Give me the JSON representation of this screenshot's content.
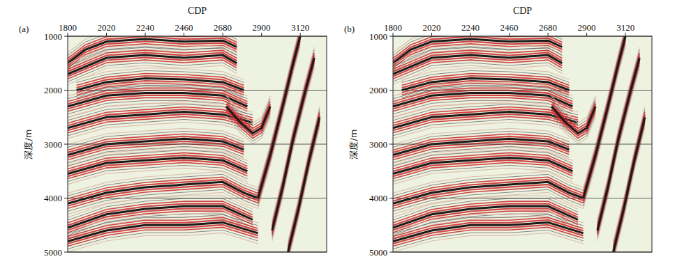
{
  "chart_data": [
    {
      "type": "seismic_section",
      "panel_label": "(a)",
      "x_label": "CDP",
      "y_label": "深度/m",
      "xlim": [
        1800,
        3270
      ],
      "ylim": [
        1000,
        5000
      ],
      "xticks": [
        1800,
        2020,
        2240,
        2460,
        2680,
        2900,
        3120
      ],
      "yticks": [
        1000,
        2000,
        3000,
        4000,
        5000
      ],
      "grid": true,
      "color": "#c8282a",
      "horizons": [
        {
          "x": [
            1800,
            1900,
            2020,
            2240,
            2460,
            2680,
            2760
          ],
          "depth": [
            1500,
            1250,
            1100,
            1050,
            1100,
            1080,
            1200
          ]
        },
        {
          "x": [
            1800,
            2020,
            2240,
            2460,
            2680,
            2760
          ],
          "depth": [
            1700,
            1400,
            1350,
            1400,
            1350,
            1500
          ]
        },
        {
          "x": [
            1850,
            2020,
            2240,
            2460,
            2680,
            2800
          ],
          "depth": [
            2000,
            1850,
            1780,
            1800,
            1850,
            2000
          ]
        },
        {
          "x": [
            1800,
            2020,
            2240,
            2460,
            2680,
            2820
          ],
          "depth": [
            2300,
            2100,
            2050,
            2050,
            2100,
            2300
          ]
        },
        {
          "x": [
            1800,
            2020,
            2240,
            2460,
            2680,
            2850
          ],
          "depth": [
            2700,
            2500,
            2450,
            2400,
            2450,
            2600
          ]
        },
        {
          "x": [
            2700,
            2780,
            2850,
            2900,
            2950
          ],
          "depth": [
            2300,
            2600,
            2800,
            2700,
            2300
          ]
        },
        {
          "x": [
            1800,
            2020,
            2240,
            2460,
            2680,
            2800
          ],
          "depth": [
            3200,
            3000,
            2950,
            2900,
            2950,
            3100
          ]
        },
        {
          "x": [
            1800,
            2020,
            2240,
            2460,
            2680,
            2820
          ],
          "depth": [
            3550,
            3350,
            3300,
            3250,
            3300,
            3500
          ]
        },
        {
          "x": [
            1800,
            2020,
            2240,
            2460,
            2680,
            2800,
            2880
          ],
          "depth": [
            4100,
            3900,
            3800,
            3750,
            3700,
            3900,
            4000
          ]
        },
        {
          "x": [
            1800,
            2020,
            2240,
            2460,
            2680,
            2850
          ],
          "depth": [
            4550,
            4300,
            4200,
            4150,
            4150,
            4400
          ]
        },
        {
          "x": [
            1800,
            2020,
            2240,
            2460,
            2680,
            2880
          ],
          "depth": [
            4800,
            4600,
            4500,
            4500,
            4450,
            4650
          ]
        },
        {
          "x": [
            2880,
            2950,
            3020,
            3080,
            3120
          ],
          "depth": [
            4000,
            3200,
            2300,
            1500,
            1000
          ]
        },
        {
          "x": [
            2960,
            3020,
            3080,
            3150,
            3200
          ],
          "depth": [
            4600,
            3800,
            2900,
            2000,
            1400
          ]
        },
        {
          "x": [
            3050,
            3110,
            3170,
            3230
          ],
          "depth": [
            5000,
            4200,
            3300,
            2500
          ]
        }
      ]
    },
    {
      "type": "seismic_section",
      "panel_label": "(b)",
      "x_label": "CDP",
      "y_label": "深度/m",
      "xlim": [
        1800,
        3270
      ],
      "ylim": [
        1000,
        5000
      ],
      "xticks": [
        1800,
        2020,
        2240,
        2460,
        2680,
        2900,
        3120
      ],
      "yticks": [
        1000,
        2000,
        3000,
        4000,
        5000
      ],
      "grid": true,
      "color": "#c8282a",
      "horizons": [
        {
          "x": [
            1800,
            1900,
            2020,
            2240,
            2460,
            2680,
            2760
          ],
          "depth": [
            1500,
            1250,
            1100,
            1050,
            1100,
            1080,
            1200
          ]
        },
        {
          "x": [
            1800,
            2020,
            2240,
            2460,
            2680,
            2760
          ],
          "depth": [
            1700,
            1400,
            1350,
            1400,
            1350,
            1500
          ]
        },
        {
          "x": [
            1850,
            2020,
            2240,
            2460,
            2680,
            2800
          ],
          "depth": [
            2000,
            1850,
            1780,
            1800,
            1850,
            2000
          ]
        },
        {
          "x": [
            1800,
            2020,
            2240,
            2460,
            2680,
            2820
          ],
          "depth": [
            2300,
            2100,
            2050,
            2050,
            2100,
            2300
          ]
        },
        {
          "x": [
            1800,
            2020,
            2240,
            2460,
            2680,
            2850
          ],
          "depth": [
            2700,
            2500,
            2450,
            2400,
            2450,
            2600
          ]
        },
        {
          "x": [
            2700,
            2780,
            2850,
            2900,
            2950
          ],
          "depth": [
            2300,
            2600,
            2800,
            2700,
            2300
          ]
        },
        {
          "x": [
            1800,
            2020,
            2240,
            2460,
            2680,
            2800
          ],
          "depth": [
            3200,
            3000,
            2950,
            2900,
            2950,
            3100
          ]
        },
        {
          "x": [
            1800,
            2020,
            2240,
            2460,
            2680,
            2820
          ],
          "depth": [
            3550,
            3350,
            3300,
            3250,
            3300,
            3500
          ]
        },
        {
          "x": [
            1800,
            2020,
            2240,
            2460,
            2680,
            2800,
            2880
          ],
          "depth": [
            4100,
            3900,
            3800,
            3750,
            3700,
            3900,
            4000
          ]
        },
        {
          "x": [
            1800,
            2020,
            2240,
            2460,
            2680,
            2850
          ],
          "depth": [
            4550,
            4300,
            4200,
            4150,
            4150,
            4400
          ]
        },
        {
          "x": [
            1800,
            2020,
            2240,
            2460,
            2680,
            2880
          ],
          "depth": [
            4800,
            4600,
            4500,
            4500,
            4450,
            4650
          ]
        },
        {
          "x": [
            2880,
            2950,
            3020,
            3080,
            3120
          ],
          "depth": [
            4000,
            3200,
            2300,
            1500,
            1000
          ]
        },
        {
          "x": [
            2960,
            3020,
            3080,
            3150,
            3200
          ],
          "depth": [
            4600,
            3800,
            2900,
            2000,
            1400
          ]
        },
        {
          "x": [
            3050,
            3110,
            3170,
            3230
          ],
          "depth": [
            5000,
            4200,
            3300,
            2500
          ]
        }
      ]
    }
  ]
}
